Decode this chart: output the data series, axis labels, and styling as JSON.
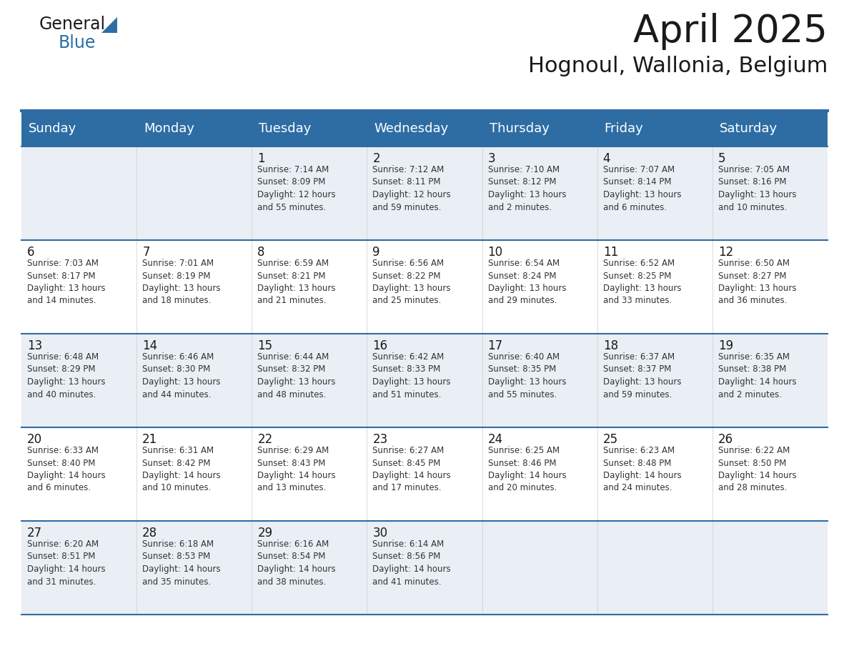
{
  "title": "April 2025",
  "subtitle": "Hognoul, Wallonia, Belgium",
  "header_bg_color": "#2E6DA4",
  "header_text_color": "#FFFFFF",
  "row_bg_colors": [
    "#EAEFF5",
    "#FFFFFF"
  ],
  "cell_text_color": "#333333",
  "day_number_color": "#1a1a1a",
  "grid_line_color": "#2E6DA4",
  "background_color": "#FFFFFF",
  "days_of_week": [
    "Sunday",
    "Monday",
    "Tuesday",
    "Wednesday",
    "Thursday",
    "Friday",
    "Saturday"
  ],
  "weeks": [
    [
      {
        "day": "",
        "text": ""
      },
      {
        "day": "",
        "text": ""
      },
      {
        "day": "1",
        "text": "Sunrise: 7:14 AM\nSunset: 8:09 PM\nDaylight: 12 hours\nand 55 minutes."
      },
      {
        "day": "2",
        "text": "Sunrise: 7:12 AM\nSunset: 8:11 PM\nDaylight: 12 hours\nand 59 minutes."
      },
      {
        "day": "3",
        "text": "Sunrise: 7:10 AM\nSunset: 8:12 PM\nDaylight: 13 hours\nand 2 minutes."
      },
      {
        "day": "4",
        "text": "Sunrise: 7:07 AM\nSunset: 8:14 PM\nDaylight: 13 hours\nand 6 minutes."
      },
      {
        "day": "5",
        "text": "Sunrise: 7:05 AM\nSunset: 8:16 PM\nDaylight: 13 hours\nand 10 minutes."
      }
    ],
    [
      {
        "day": "6",
        "text": "Sunrise: 7:03 AM\nSunset: 8:17 PM\nDaylight: 13 hours\nand 14 minutes."
      },
      {
        "day": "7",
        "text": "Sunrise: 7:01 AM\nSunset: 8:19 PM\nDaylight: 13 hours\nand 18 minutes."
      },
      {
        "day": "8",
        "text": "Sunrise: 6:59 AM\nSunset: 8:21 PM\nDaylight: 13 hours\nand 21 minutes."
      },
      {
        "day": "9",
        "text": "Sunrise: 6:56 AM\nSunset: 8:22 PM\nDaylight: 13 hours\nand 25 minutes."
      },
      {
        "day": "10",
        "text": "Sunrise: 6:54 AM\nSunset: 8:24 PM\nDaylight: 13 hours\nand 29 minutes."
      },
      {
        "day": "11",
        "text": "Sunrise: 6:52 AM\nSunset: 8:25 PM\nDaylight: 13 hours\nand 33 minutes."
      },
      {
        "day": "12",
        "text": "Sunrise: 6:50 AM\nSunset: 8:27 PM\nDaylight: 13 hours\nand 36 minutes."
      }
    ],
    [
      {
        "day": "13",
        "text": "Sunrise: 6:48 AM\nSunset: 8:29 PM\nDaylight: 13 hours\nand 40 minutes."
      },
      {
        "day": "14",
        "text": "Sunrise: 6:46 AM\nSunset: 8:30 PM\nDaylight: 13 hours\nand 44 minutes."
      },
      {
        "day": "15",
        "text": "Sunrise: 6:44 AM\nSunset: 8:32 PM\nDaylight: 13 hours\nand 48 minutes."
      },
      {
        "day": "16",
        "text": "Sunrise: 6:42 AM\nSunset: 8:33 PM\nDaylight: 13 hours\nand 51 minutes."
      },
      {
        "day": "17",
        "text": "Sunrise: 6:40 AM\nSunset: 8:35 PM\nDaylight: 13 hours\nand 55 minutes."
      },
      {
        "day": "18",
        "text": "Sunrise: 6:37 AM\nSunset: 8:37 PM\nDaylight: 13 hours\nand 59 minutes."
      },
      {
        "day": "19",
        "text": "Sunrise: 6:35 AM\nSunset: 8:38 PM\nDaylight: 14 hours\nand 2 minutes."
      }
    ],
    [
      {
        "day": "20",
        "text": "Sunrise: 6:33 AM\nSunset: 8:40 PM\nDaylight: 14 hours\nand 6 minutes."
      },
      {
        "day": "21",
        "text": "Sunrise: 6:31 AM\nSunset: 8:42 PM\nDaylight: 14 hours\nand 10 minutes."
      },
      {
        "day": "22",
        "text": "Sunrise: 6:29 AM\nSunset: 8:43 PM\nDaylight: 14 hours\nand 13 minutes."
      },
      {
        "day": "23",
        "text": "Sunrise: 6:27 AM\nSunset: 8:45 PM\nDaylight: 14 hours\nand 17 minutes."
      },
      {
        "day": "24",
        "text": "Sunrise: 6:25 AM\nSunset: 8:46 PM\nDaylight: 14 hours\nand 20 minutes."
      },
      {
        "day": "25",
        "text": "Sunrise: 6:23 AM\nSunset: 8:48 PM\nDaylight: 14 hours\nand 24 minutes."
      },
      {
        "day": "26",
        "text": "Sunrise: 6:22 AM\nSunset: 8:50 PM\nDaylight: 14 hours\nand 28 minutes."
      }
    ],
    [
      {
        "day": "27",
        "text": "Sunrise: 6:20 AM\nSunset: 8:51 PM\nDaylight: 14 hours\nand 31 minutes."
      },
      {
        "day": "28",
        "text": "Sunrise: 6:18 AM\nSunset: 8:53 PM\nDaylight: 14 hours\nand 35 minutes."
      },
      {
        "day": "29",
        "text": "Sunrise: 6:16 AM\nSunset: 8:54 PM\nDaylight: 14 hours\nand 38 minutes."
      },
      {
        "day": "30",
        "text": "Sunrise: 6:14 AM\nSunset: 8:56 PM\nDaylight: 14 hours\nand 41 minutes."
      },
      {
        "day": "",
        "text": ""
      },
      {
        "day": "",
        "text": ""
      },
      {
        "day": "",
        "text": ""
      }
    ]
  ],
  "title_fontsize": 38,
  "subtitle_fontsize": 22,
  "header_fontsize": 13,
  "day_num_fontsize": 12,
  "cell_text_fontsize": 8.5,
  "logo_general_fontsize": 17,
  "logo_blue_fontsize": 17
}
